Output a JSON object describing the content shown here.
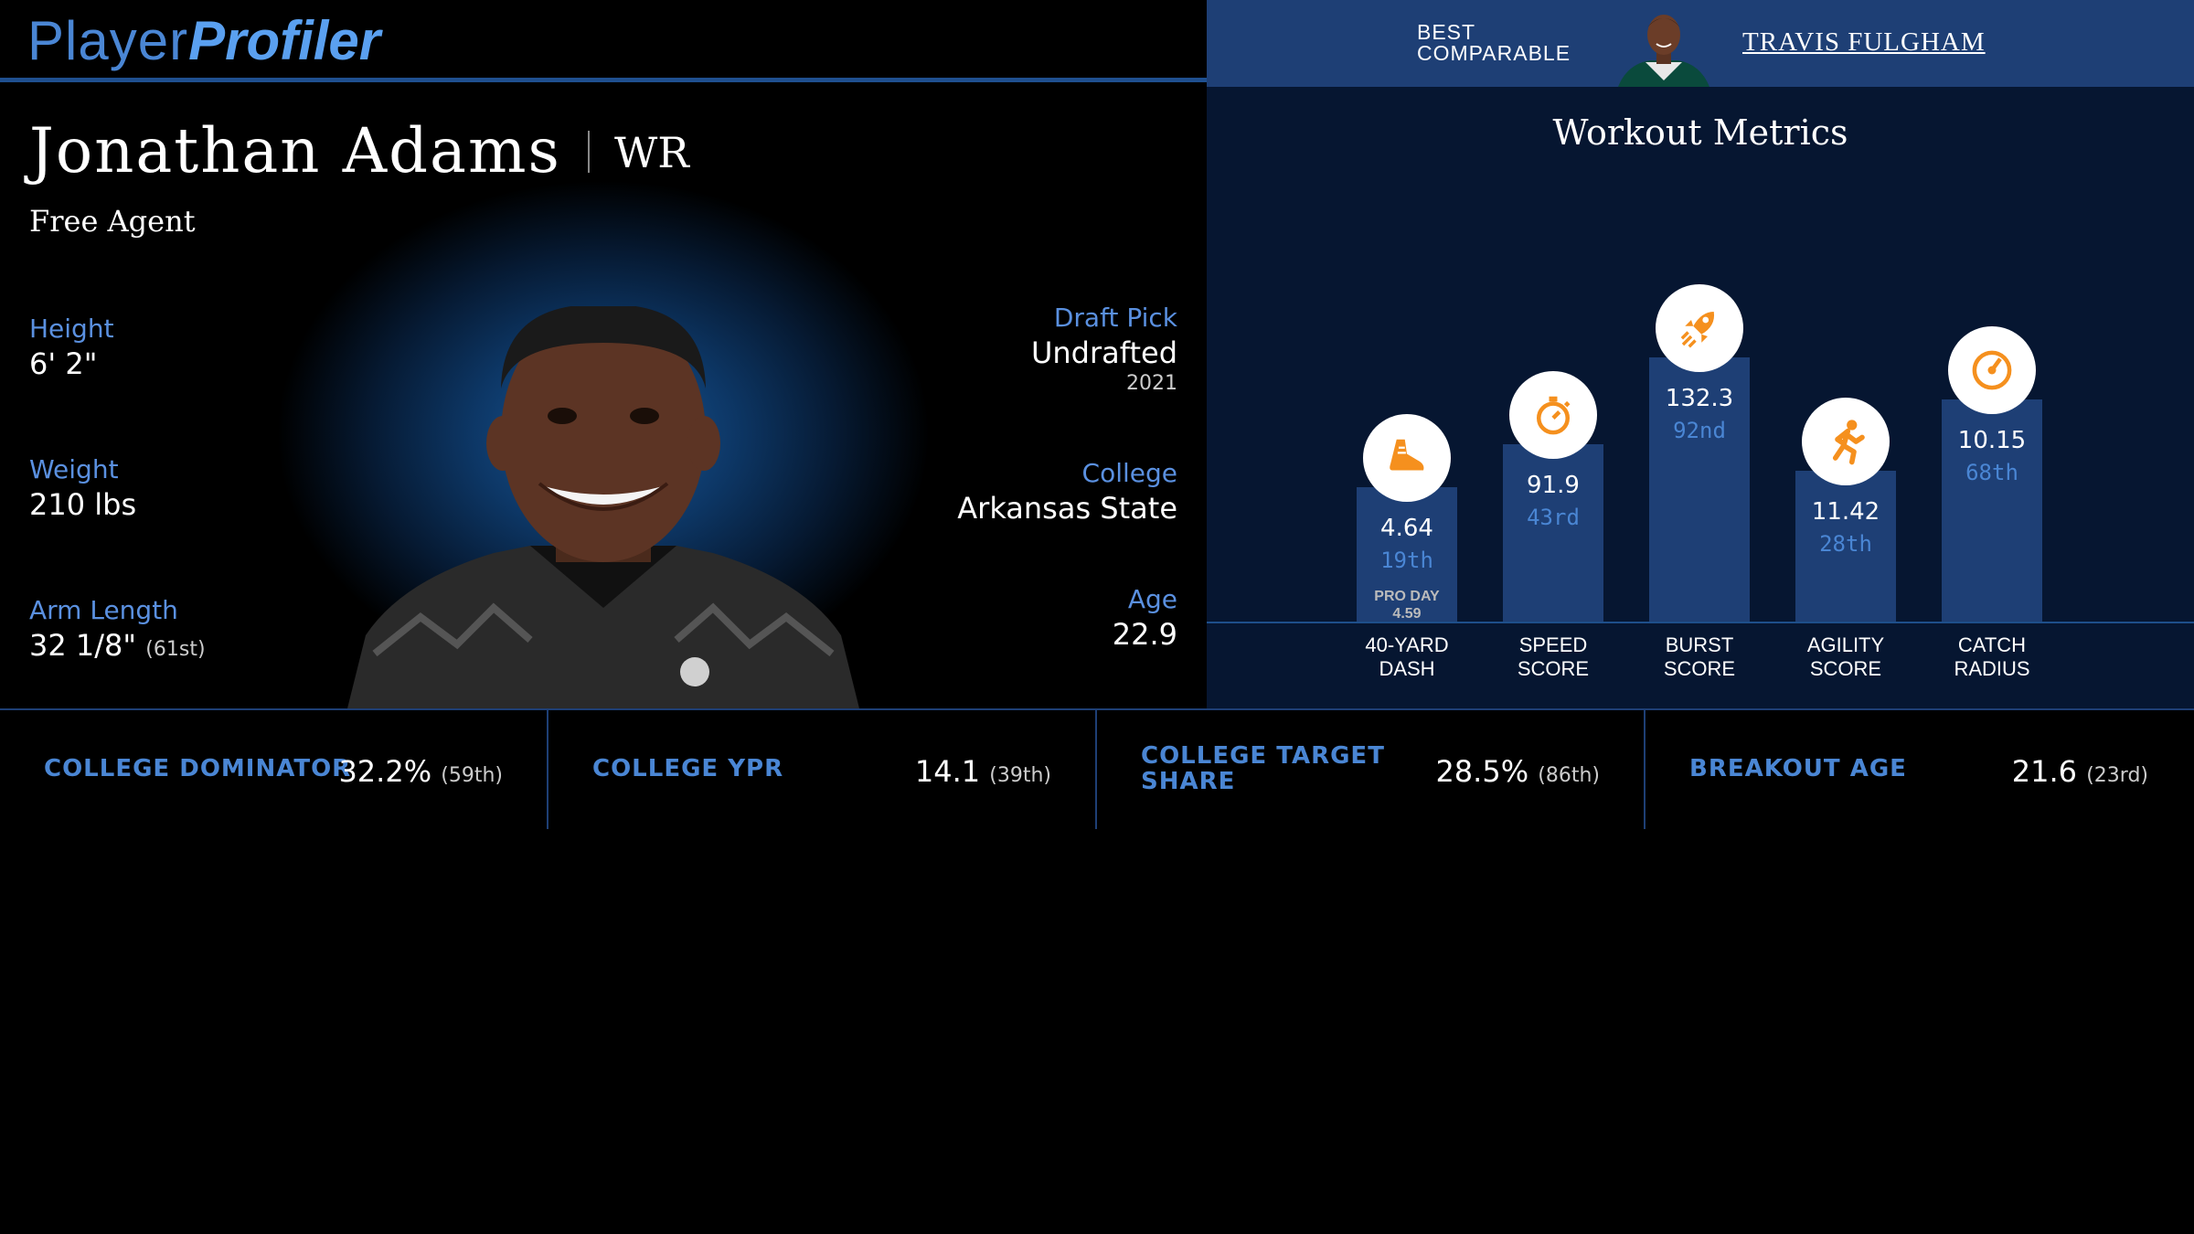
{
  "header": {
    "logo_player": "Player",
    "logo_profiler": "Profiler",
    "best_comparable_label": "BEST COMPARABLE",
    "best_comparable_name": "TRAVIS FULGHAM"
  },
  "player": {
    "name": "Jonathan Adams",
    "position": "WR",
    "team": "Free Agent",
    "height_label": "Height",
    "height": "6' 2\"",
    "weight_label": "Weight",
    "weight": "210 lbs",
    "arm_label": "Arm Length",
    "arm": "32 1/8\"",
    "arm_pct": "(61st)",
    "draft_label": "Draft Pick",
    "draft": "Undrafted",
    "draft_year": "2021",
    "college_label": "College",
    "college": "Arkansas State",
    "age_label": "Age",
    "age": "22.9"
  },
  "workout": {
    "title": "Workout Metrics",
    "metrics": [
      {
        "label": "40-YARD\nDASH",
        "value": "4.64",
        "rank": "19th",
        "percentile": 19,
        "extra_label": "PRO DAY",
        "extra_value": "4.59",
        "icon": "shoe-icon"
      },
      {
        "label": "SPEED\nSCORE",
        "value": "91.9",
        "rank": "43rd",
        "percentile": 43,
        "icon": "stopwatch-icon"
      },
      {
        "label": "BURST\nSCORE",
        "value": "132.3",
        "rank": "92nd",
        "percentile": 92,
        "icon": "rocket-icon"
      },
      {
        "label": "AGILITY\nSCORE",
        "value": "11.42",
        "rank": "28th",
        "percentile": 28,
        "icon": "runner-icon"
      },
      {
        "label": "CATCH\nRADIUS",
        "value": "10.15",
        "rank": "68th",
        "percentile": 68,
        "icon": "target-icon"
      }
    ]
  },
  "bottom_metrics": [
    {
      "label": "COLLEGE DOMINATOR",
      "value": "32.2%",
      "pct": "(59th)"
    },
    {
      "label": "COLLEGE YPR",
      "value": "14.1",
      "pct": "(39th)"
    },
    {
      "label": "COLLEGE TARGET SHARE",
      "value": "28.5%",
      "pct": "(86th)"
    },
    {
      "label": "BREAKOUT AGE",
      "value": "21.6",
      "pct": "(23rd)"
    }
  ],
  "colors": {
    "accent": "#4a86d4",
    "icon_orange": "#f5901e",
    "panel": "#1e3f75"
  }
}
